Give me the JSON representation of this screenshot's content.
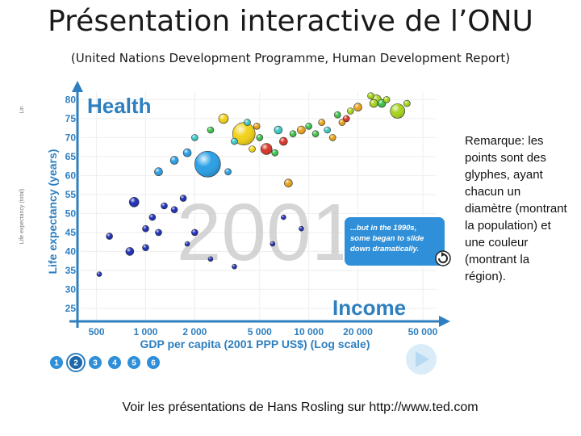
{
  "slide": {
    "title": "Présentation interactive de l’ONU",
    "subtitle": "(United Nations Development Programme, Human Development Report)",
    "note": "Remarque: les points sont des glyphes, ayant chacun un diamètre (montrant la population) et une couleur (montrant la région).",
    "footer": "Voir les présentations de Hans Rosling sur http://www.ted.com"
  },
  "chart_data": {
    "type": "scatter",
    "title": "Health",
    "x_title": "Income",
    "year_label": "2001",
    "xlabel": "GDP per capita (2001 PPP US$) (Log scale)",
    "ylabel": "Life expectancy (years)",
    "y_side_labels": [
      "Lin",
      "Life expectancy (total)"
    ],
    "xscale": "log",
    "xlim": [
      400,
      60000
    ],
    "ylim": [
      22,
      82
    ],
    "x_ticks": [
      500,
      1000,
      2000,
      5000,
      10000,
      20000,
      50000
    ],
    "x_tick_labels": [
      "500",
      "1 000",
      "2 000",
      "5 000",
      "10 000",
      "20 000",
      "50 000"
    ],
    "y_ticks": [
      25,
      30,
      35,
      40,
      45,
      50,
      55,
      60,
      65,
      70,
      75,
      80
    ],
    "callout": [
      "...but in the 1990s,",
      "some began to slide",
      "down dramatically."
    ],
    "steps": [
      "1",
      "2",
      "3",
      "4",
      "5",
      "6"
    ],
    "active_step": "2",
    "region_colors": {
      "sub_saharan_africa": "#1f2fb8",
      "south_asia": "#2aa0e6",
      "east_asia_pacific": "#f2d21a",
      "middle_east_north_africa": "#3ac9c4",
      "latin_america": "#3cc24a",
      "europe_central_asia": "#e8a21a",
      "high_income": "#a8d41c",
      "other": "#d8372a"
    },
    "points": [
      {
        "gdp": 4000,
        "life": 71,
        "size": 14,
        "color": "#f2d21a"
      },
      {
        "gdp": 2400,
        "life": 63,
        "size": 16,
        "color": "#2aa0e6"
      },
      {
        "gdp": 3000,
        "life": 75,
        "size": 6,
        "color": "#f2d21a"
      },
      {
        "gdp": 5500,
        "life": 67,
        "size": 7,
        "color": "#d8372a"
      },
      {
        "gdp": 7000,
        "life": 69,
        "size": 5,
        "color": "#d8372a"
      },
      {
        "gdp": 4500,
        "life": 67,
        "size": 4,
        "color": "#f2d21a"
      },
      {
        "gdp": 3500,
        "life": 69,
        "size": 4,
        "color": "#3ac9c4"
      },
      {
        "gdp": 4800,
        "life": 73,
        "size": 4,
        "color": "#e8a21a"
      },
      {
        "gdp": 6500,
        "life": 72,
        "size": 5,
        "color": "#3ac9c4"
      },
      {
        "gdp": 8000,
        "life": 71,
        "size": 4,
        "color": "#3cc24a"
      },
      {
        "gdp": 9000,
        "life": 72,
        "size": 5,
        "color": "#e8a21a"
      },
      {
        "gdp": 10000,
        "life": 73,
        "size": 4,
        "color": "#3cc24a"
      },
      {
        "gdp": 12000,
        "life": 74,
        "size": 4,
        "color": "#e8a21a"
      },
      {
        "gdp": 15000,
        "life": 76,
        "size": 4,
        "color": "#3cc24a"
      },
      {
        "gdp": 18000,
        "life": 77,
        "size": 4,
        "color": "#a8d41c"
      },
      {
        "gdp": 20000,
        "life": 78,
        "size": 5,
        "color": "#e8a21a"
      },
      {
        "gdp": 25000,
        "life": 79,
        "size": 5,
        "color": "#a8d41c"
      },
      {
        "gdp": 26000,
        "life": 80,
        "size": 6,
        "color": "#a8d41c"
      },
      {
        "gdp": 28000,
        "life": 79,
        "size": 5,
        "color": "#3cc24a"
      },
      {
        "gdp": 30000,
        "life": 80,
        "size": 4,
        "color": "#a8d41c"
      },
      {
        "gdp": 24000,
        "life": 81,
        "size": 4,
        "color": "#a8d41c"
      },
      {
        "gdp": 35000,
        "life": 77,
        "size": 9,
        "color": "#a8d41c"
      },
      {
        "gdp": 40000,
        "life": 79,
        "size": 4,
        "color": "#a8d41c"
      },
      {
        "gdp": 16000,
        "life": 74,
        "size": 4,
        "color": "#e8a21a"
      },
      {
        "gdp": 13000,
        "life": 72,
        "size": 4,
        "color": "#3ac9c4"
      },
      {
        "gdp": 11000,
        "life": 71,
        "size": 4,
        "color": "#3cc24a"
      },
      {
        "gdp": 14000,
        "life": 70,
        "size": 4,
        "color": "#e8a21a"
      },
      {
        "gdp": 17000,
        "life": 75,
        "size": 4,
        "color": "#d8372a"
      },
      {
        "gdp": 2000,
        "life": 70,
        "size": 4,
        "color": "#3ac9c4"
      },
      {
        "gdp": 2500,
        "life": 72,
        "size": 4,
        "color": "#3cc24a"
      },
      {
        "gdp": 5000,
        "life": 70,
        "size": 4,
        "color": "#3cc24a"
      },
      {
        "gdp": 4200,
        "life": 74,
        "size": 4,
        "color": "#3ac9c4"
      },
      {
        "gdp": 1800,
        "life": 66,
        "size": 5,
        "color": "#2aa0e6"
      },
      {
        "gdp": 1500,
        "life": 64,
        "size": 5,
        "color": "#2aa0e6"
      },
      {
        "gdp": 1200,
        "life": 61,
        "size": 5,
        "color": "#2aa0e6"
      },
      {
        "gdp": 3200,
        "life": 61,
        "size": 4,
        "color": "#2aa0e6"
      },
      {
        "gdp": 7500,
        "life": 58,
        "size": 5,
        "color": "#e8a21a"
      },
      {
        "gdp": 6200,
        "life": 66,
        "size": 4,
        "color": "#3cc24a"
      },
      {
        "gdp": 850,
        "life": 53,
        "size": 6,
        "color": "#1f2fb8"
      },
      {
        "gdp": 1000,
        "life": 46,
        "size": 4,
        "color": "#1f2fb8"
      },
      {
        "gdp": 1100,
        "life": 49,
        "size": 4,
        "color": "#1f2fb8"
      },
      {
        "gdp": 1300,
        "life": 52,
        "size": 4,
        "color": "#1f2fb8"
      },
      {
        "gdp": 1500,
        "life": 51,
        "size": 4,
        "color": "#1f2fb8"
      },
      {
        "gdp": 1700,
        "life": 54,
        "size": 4,
        "color": "#1f2fb8"
      },
      {
        "gdp": 2000,
        "life": 45,
        "size": 4,
        "color": "#1f2fb8"
      },
      {
        "gdp": 1200,
        "life": 45,
        "size": 4,
        "color": "#1f2fb8"
      },
      {
        "gdp": 1000,
        "life": 41,
        "size": 4,
        "color": "#1f2fb8"
      },
      {
        "gdp": 800,
        "life": 40,
        "size": 5,
        "color": "#1f2fb8"
      },
      {
        "gdp": 600,
        "life": 44,
        "size": 4,
        "color": "#1f2fb8"
      },
      {
        "gdp": 520,
        "life": 34,
        "size": 3,
        "color": "#1f2fb8"
      },
      {
        "gdp": 1800,
        "life": 42,
        "size": 3,
        "color": "#1f2fb8"
      },
      {
        "gdp": 2500,
        "life": 38,
        "size": 3,
        "color": "#1f2fb8"
      },
      {
        "gdp": 3500,
        "life": 36,
        "size": 3,
        "color": "#1f2fb8"
      },
      {
        "gdp": 6000,
        "life": 42,
        "size": 3,
        "color": "#1f2fb8"
      },
      {
        "gdp": 9000,
        "life": 46,
        "size": 3,
        "color": "#1f2fb8"
      },
      {
        "gdp": 7000,
        "life": 49,
        "size": 3,
        "color": "#1f2fb8"
      }
    ]
  }
}
